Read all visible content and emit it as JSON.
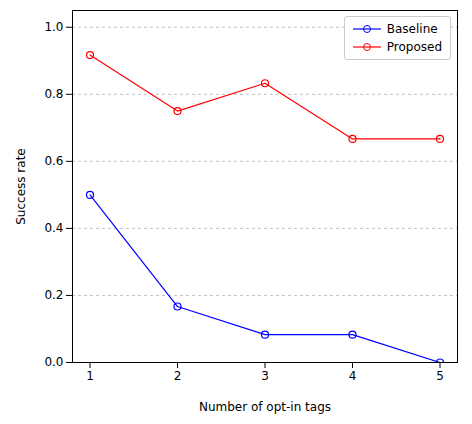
{
  "chart_data": {
    "type": "line",
    "x_label": "Number of opt-in tags",
    "y_label": "Success rate",
    "x": [
      1,
      2,
      3,
      4,
      5
    ],
    "series": [
      {
        "name": "Baseline",
        "color": "#0000ff",
        "marker": "o",
        "values": [
          0.5,
          0.167,
          0.083,
          0.083,
          0.0
        ]
      },
      {
        "name": "Proposed",
        "color": "#ff0000",
        "marker": "o",
        "values": [
          0.917,
          0.75,
          0.833,
          0.667,
          0.667
        ]
      }
    ],
    "xlim": [
      0.8,
      5.2
    ],
    "xticks": [
      1,
      2,
      3,
      4,
      5
    ],
    "ylim": [
      0,
      1.05
    ],
    "yticks": [
      {
        "value": 0,
        "label": "0.0"
      },
      {
        "value": 0.2,
        "label": "0.2"
      },
      {
        "value": 0.4,
        "label": "0.4"
      },
      {
        "value": 0.6,
        "label": "0.6"
      },
      {
        "value": 0.8,
        "label": "0.8"
      },
      {
        "value": 1,
        "label": "1.0"
      }
    ],
    "grid": true,
    "legend": "upper right"
  }
}
